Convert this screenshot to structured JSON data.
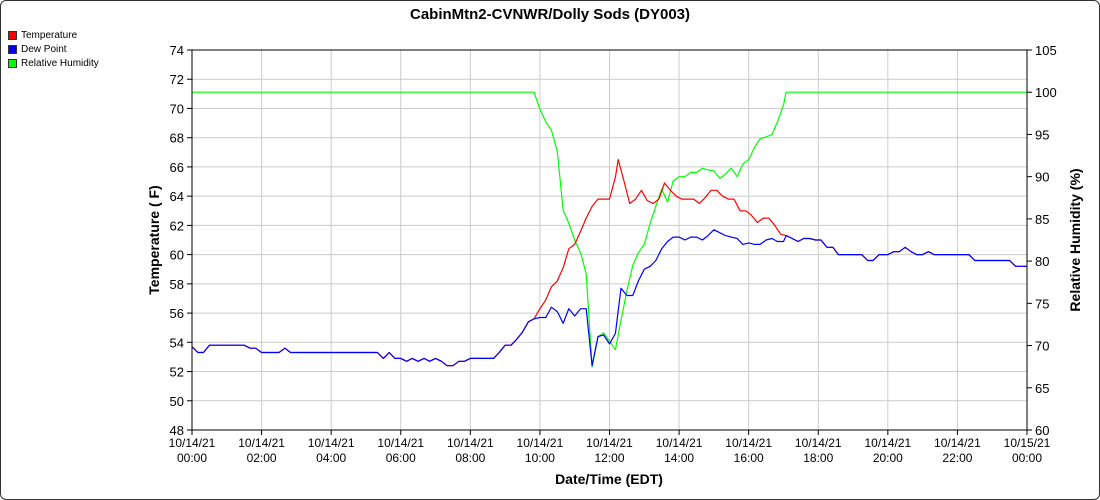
{
  "chart_data": {
    "type": "line",
    "title": "CabinMtn2-CVNWR/Dolly Sods (DY003)",
    "xlabel": "Date/Time (EDT)",
    "ylabel": "Temperature ( F)",
    "y2label": "Relative Humidity (%)",
    "ylim": [
      48,
      74
    ],
    "y2lim": [
      60,
      105
    ],
    "xlim_hours": [
      0,
      24
    ],
    "grid": true,
    "legend_position": "top-left",
    "x_tick_labels": [
      [
        "10/14/21",
        "00:00"
      ],
      [
        "10/14/21",
        "02:00"
      ],
      [
        "10/14/21",
        "04:00"
      ],
      [
        "10/14/21",
        "06:00"
      ],
      [
        "10/14/21",
        "08:00"
      ],
      [
        "10/14/21",
        "10:00"
      ],
      [
        "10/14/21",
        "12:00"
      ],
      [
        "10/14/21",
        "14:00"
      ],
      [
        "10/14/21",
        "16:00"
      ],
      [
        "10/14/21",
        "18:00"
      ],
      [
        "10/14/21",
        "20:00"
      ],
      [
        "10/14/21",
        "22:00"
      ],
      [
        "10/15/21",
        "00:00"
      ]
    ],
    "y_ticks": [
      48,
      50,
      52,
      54,
      56,
      58,
      60,
      62,
      64,
      66,
      68,
      70,
      72,
      74
    ],
    "y2_ticks": [
      60,
      65,
      70,
      75,
      80,
      85,
      90,
      95,
      100,
      105
    ],
    "series": [
      {
        "name": "Temperature",
        "color": "#ff0000",
        "axis": "left",
        "points": [
          [
            0,
            53.7
          ],
          [
            0.17,
            53.3
          ],
          [
            0.33,
            53.3
          ],
          [
            0.5,
            53.8
          ],
          [
            1,
            53.8
          ],
          [
            1.5,
            53.8
          ],
          [
            1.67,
            53.6
          ],
          [
            1.83,
            53.6
          ],
          [
            2,
            53.3
          ],
          [
            2.5,
            53.3
          ],
          [
            2.67,
            53.6
          ],
          [
            2.83,
            53.3
          ],
          [
            3,
            53.3
          ],
          [
            4,
            53.3
          ],
          [
            5,
            53.3
          ],
          [
            5.33,
            53.3
          ],
          [
            5.5,
            52.9
          ],
          [
            5.67,
            53.3
          ],
          [
            5.83,
            52.9
          ],
          [
            6,
            52.9
          ],
          [
            6.17,
            52.7
          ],
          [
            6.33,
            52.9
          ],
          [
            6.5,
            52.7
          ],
          [
            6.67,
            52.9
          ],
          [
            6.83,
            52.7
          ],
          [
            7,
            52.9
          ],
          [
            7.17,
            52.7
          ],
          [
            7.33,
            52.4
          ],
          [
            7.5,
            52.4
          ],
          [
            7.67,
            52.7
          ],
          [
            7.83,
            52.7
          ],
          [
            8,
            52.9
          ],
          [
            8.5,
            52.9
          ],
          [
            8.67,
            52.9
          ],
          [
            8.83,
            53.3
          ],
          [
            9,
            53.8
          ],
          [
            9.17,
            53.8
          ],
          [
            9.33,
            54.2
          ],
          [
            9.5,
            54.7
          ],
          [
            9.67,
            55.4
          ],
          [
            9.83,
            55.6
          ],
          [
            10,
            56.3
          ],
          [
            10.17,
            56.9
          ],
          [
            10.33,
            57.8
          ],
          [
            10.5,
            58.2
          ],
          [
            10.67,
            59.1
          ],
          [
            10.83,
            60.4
          ],
          [
            11,
            60.7
          ],
          [
            11.17,
            61.6
          ],
          [
            11.33,
            62.5
          ],
          [
            11.5,
            63.3
          ],
          [
            11.67,
            63.8
          ],
          [
            11.83,
            63.8
          ],
          [
            12,
            63.8
          ],
          [
            12.17,
            65.3
          ],
          [
            12.25,
            66.5
          ],
          [
            12.42,
            65
          ],
          [
            12.58,
            63.5
          ],
          [
            12.75,
            63.8
          ],
          [
            12.92,
            64.4
          ],
          [
            13.08,
            63.7
          ],
          [
            13.25,
            63.5
          ],
          [
            13.42,
            63.8
          ],
          [
            13.58,
            64.9
          ],
          [
            13.75,
            64.4
          ],
          [
            13.92,
            64
          ],
          [
            14.08,
            63.8
          ],
          [
            14.25,
            63.8
          ],
          [
            14.42,
            63.8
          ],
          [
            14.58,
            63.5
          ],
          [
            14.75,
            63.9
          ],
          [
            14.92,
            64.4
          ],
          [
            15.08,
            64.4
          ],
          [
            15.25,
            64
          ],
          [
            15.42,
            63.8
          ],
          [
            15.58,
            63.8
          ],
          [
            15.75,
            63
          ],
          [
            15.92,
            63
          ],
          [
            16.08,
            62.7
          ],
          [
            16.25,
            62.2
          ],
          [
            16.42,
            62.5
          ],
          [
            16.58,
            62.5
          ],
          [
            16.75,
            62
          ],
          [
            16.92,
            61.4
          ],
          [
            17.08,
            61.3
          ],
          [
            17.25,
            61.1
          ],
          [
            17.42,
            60.9
          ],
          [
            17.58,
            61.1
          ],
          [
            17.75,
            61.1
          ],
          [
            17.92,
            61
          ],
          [
            18.08,
            61
          ],
          [
            18.25,
            60.5
          ],
          [
            18.42,
            60.5
          ],
          [
            18.58,
            60
          ],
          [
            18.75,
            60
          ],
          [
            19,
            60
          ],
          [
            19.25,
            60
          ],
          [
            19.42,
            59.6
          ],
          [
            19.58,
            59.6
          ],
          [
            19.75,
            60
          ],
          [
            20,
            60
          ],
          [
            20.17,
            60.2
          ],
          [
            20.33,
            60.2
          ],
          [
            20.5,
            60.5
          ],
          [
            20.67,
            60.2
          ],
          [
            20.83,
            60
          ],
          [
            21,
            60
          ],
          [
            21.17,
            60.2
          ],
          [
            21.33,
            60
          ],
          [
            21.5,
            60
          ],
          [
            22,
            60
          ],
          [
            22.33,
            60
          ],
          [
            22.5,
            59.6
          ],
          [
            23,
            59.6
          ],
          [
            23.5,
            59.6
          ],
          [
            23.67,
            59.2
          ],
          [
            24,
            59.2
          ]
        ]
      },
      {
        "name": "Dew Point",
        "color": "#0000ff",
        "axis": "left",
        "points": [
          [
            0,
            53.7
          ],
          [
            0.17,
            53.3
          ],
          [
            0.33,
            53.3
          ],
          [
            0.5,
            53.8
          ],
          [
            1,
            53.8
          ],
          [
            1.5,
            53.8
          ],
          [
            1.67,
            53.6
          ],
          [
            1.83,
            53.6
          ],
          [
            2,
            53.3
          ],
          [
            2.5,
            53.3
          ],
          [
            2.67,
            53.6
          ],
          [
            2.83,
            53.3
          ],
          [
            3,
            53.3
          ],
          [
            4,
            53.3
          ],
          [
            5,
            53.3
          ],
          [
            5.33,
            53.3
          ],
          [
            5.5,
            52.9
          ],
          [
            5.67,
            53.3
          ],
          [
            5.83,
            52.9
          ],
          [
            6,
            52.9
          ],
          [
            6.17,
            52.7
          ],
          [
            6.33,
            52.9
          ],
          [
            6.5,
            52.7
          ],
          [
            6.67,
            52.9
          ],
          [
            6.83,
            52.7
          ],
          [
            7,
            52.9
          ],
          [
            7.17,
            52.7
          ],
          [
            7.33,
            52.4
          ],
          [
            7.5,
            52.4
          ],
          [
            7.67,
            52.7
          ],
          [
            7.83,
            52.7
          ],
          [
            8,
            52.9
          ],
          [
            8.5,
            52.9
          ],
          [
            8.67,
            52.9
          ],
          [
            8.83,
            53.3
          ],
          [
            9,
            53.8
          ],
          [
            9.17,
            53.8
          ],
          [
            9.33,
            54.2
          ],
          [
            9.5,
            54.7
          ],
          [
            9.67,
            55.4
          ],
          [
            9.83,
            55.6
          ],
          [
            10,
            55.7
          ],
          [
            10.17,
            55.7
          ],
          [
            10.33,
            56.4
          ],
          [
            10.5,
            56.1
          ],
          [
            10.67,
            55.3
          ],
          [
            10.83,
            56.3
          ],
          [
            11,
            55.8
          ],
          [
            11.17,
            56.3
          ],
          [
            11.33,
            56.3
          ],
          [
            11.5,
            52.4
          ],
          [
            11.67,
            54.4
          ],
          [
            11.83,
            54.5
          ],
          [
            12,
            53.9
          ],
          [
            12.17,
            54.6
          ],
          [
            12.33,
            57.7
          ],
          [
            12.5,
            57.2
          ],
          [
            12.67,
            57.2
          ],
          [
            12.83,
            58.2
          ],
          [
            13,
            59
          ],
          [
            13.17,
            59.2
          ],
          [
            13.33,
            59.6
          ],
          [
            13.5,
            60.4
          ],
          [
            13.67,
            60.9
          ],
          [
            13.83,
            61.2
          ],
          [
            14,
            61.2
          ],
          [
            14.17,
            61
          ],
          [
            14.33,
            61.2
          ],
          [
            14.5,
            61.2
          ],
          [
            14.67,
            61
          ],
          [
            14.83,
            61.3
          ],
          [
            15,
            61.7
          ],
          [
            15.17,
            61.5
          ],
          [
            15.33,
            61.3
          ],
          [
            15.5,
            61.2
          ],
          [
            15.67,
            61.1
          ],
          [
            15.83,
            60.7
          ],
          [
            16,
            60.8
          ],
          [
            16.17,
            60.7
          ],
          [
            16.33,
            60.7
          ],
          [
            16.5,
            61
          ],
          [
            16.67,
            61.1
          ],
          [
            16.83,
            60.9
          ],
          [
            17,
            60.9
          ],
          [
            17.08,
            61.3
          ],
          [
            17.25,
            61.1
          ],
          [
            17.42,
            60.9
          ],
          [
            17.58,
            61.1
          ],
          [
            17.75,
            61.1
          ],
          [
            17.92,
            61
          ],
          [
            18.08,
            61
          ],
          [
            18.25,
            60.5
          ],
          [
            18.42,
            60.5
          ],
          [
            18.58,
            60
          ],
          [
            18.75,
            60
          ],
          [
            19,
            60
          ],
          [
            19.25,
            60
          ],
          [
            19.42,
            59.6
          ],
          [
            19.58,
            59.6
          ],
          [
            19.75,
            60
          ],
          [
            20,
            60
          ],
          [
            20.17,
            60.2
          ],
          [
            20.33,
            60.2
          ],
          [
            20.5,
            60.5
          ],
          [
            20.67,
            60.2
          ],
          [
            20.83,
            60
          ],
          [
            21,
            60
          ],
          [
            21.17,
            60.2
          ],
          [
            21.33,
            60
          ],
          [
            21.5,
            60
          ],
          [
            22,
            60
          ],
          [
            22.33,
            60
          ],
          [
            22.5,
            59.6
          ],
          [
            23,
            59.6
          ],
          [
            23.5,
            59.6
          ],
          [
            23.67,
            59.2
          ],
          [
            24,
            59.2
          ]
        ]
      },
      {
        "name": "Relative Humidity",
        "color": "#00ff00",
        "axis": "right",
        "points": [
          [
            0,
            100
          ],
          [
            2,
            100
          ],
          [
            4,
            100
          ],
          [
            6,
            100
          ],
          [
            8,
            100
          ],
          [
            9.83,
            100
          ],
          [
            10,
            98
          ],
          [
            10.17,
            96.5
          ],
          [
            10.33,
            95.5
          ],
          [
            10.5,
            93
          ],
          [
            10.67,
            86
          ],
          [
            10.83,
            84.5
          ],
          [
            11,
            82.5
          ],
          [
            11.17,
            81
          ],
          [
            11.33,
            78.5
          ],
          [
            11.5,
            67.5
          ],
          [
            11.67,
            71
          ],
          [
            11.83,
            71.5
          ],
          [
            12,
            70.5
          ],
          [
            12.17,
            69.5
          ],
          [
            12.33,
            73
          ],
          [
            12.5,
            76.5
          ],
          [
            12.67,
            79.5
          ],
          [
            12.83,
            81
          ],
          [
            13,
            82
          ],
          [
            13.17,
            84.5
          ],
          [
            13.33,
            86.5
          ],
          [
            13.5,
            88.5
          ],
          [
            13.67,
            87
          ],
          [
            13.83,
            89.5
          ],
          [
            14,
            90
          ],
          [
            14.17,
            90
          ],
          [
            14.33,
            90.5
          ],
          [
            14.5,
            90.5
          ],
          [
            14.67,
            91
          ],
          [
            14.83,
            90.8
          ],
          [
            15,
            90.7
          ],
          [
            15.17,
            89.8
          ],
          [
            15.33,
            90.3
          ],
          [
            15.5,
            91
          ],
          [
            15.67,
            90
          ],
          [
            15.83,
            91.5
          ],
          [
            16,
            92
          ],
          [
            16.17,
            93.5
          ],
          [
            16.33,
            94.5
          ],
          [
            16.5,
            94.7
          ],
          [
            16.67,
            95
          ],
          [
            16.83,
            96.5
          ],
          [
            17,
            98.5
          ],
          [
            17.08,
            100
          ],
          [
            17.5,
            100
          ],
          [
            18,
            100
          ],
          [
            20,
            100
          ],
          [
            22,
            100
          ],
          [
            24,
            100
          ]
        ]
      }
    ]
  }
}
